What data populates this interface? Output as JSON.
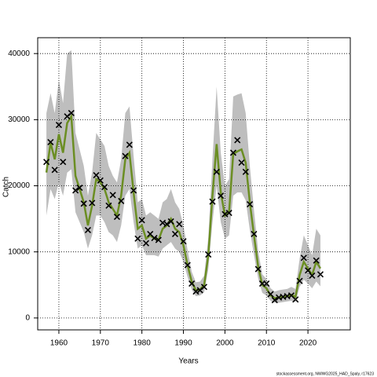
{
  "chart_data": {
    "type": "line",
    "xlabel": "Years",
    "ylabel": "Catch",
    "footer": "stockassessment.org, NWWG2025_HAD_Spaly, r17623",
    "x": [
      1957,
      1958,
      1959,
      1960,
      1961,
      1962,
      1963,
      1964,
      1965,
      1966,
      1967,
      1968,
      1969,
      1970,
      1971,
      1972,
      1973,
      1974,
      1975,
      1976,
      1977,
      1978,
      1979,
      1980,
      1981,
      1982,
      1983,
      1984,
      1985,
      1986,
      1987,
      1988,
      1989,
      1990,
      1991,
      1992,
      1993,
      1994,
      1995,
      1996,
      1997,
      1998,
      1999,
      2000,
      2001,
      2002,
      2003,
      2004,
      2005,
      2006,
      2007,
      2008,
      2009,
      2010,
      2011,
      2012,
      2013,
      2014,
      2015,
      2016,
      2017,
      2018,
      2019,
      2020,
      2021,
      2022,
      2023
    ],
    "estimate": [
      22000,
      26500,
      24000,
      27800,
      25000,
      29500,
      30500,
      21500,
      19500,
      17500,
      14000,
      17000,
      21000,
      20500,
      19500,
      17500,
      16500,
      15500,
      18500,
      24000,
      25000,
      19000,
      13500,
      14000,
      12000,
      12500,
      12000,
      11800,
      13500,
      14000,
      15000,
      13500,
      13000,
      11000,
      8000,
      5500,
      4200,
      4300,
      5000,
      9500,
      18500,
      26300,
      19000,
      15500,
      16000,
      24800,
      25200,
      25500,
      23500,
      17500,
      12500,
      7800,
      5000,
      4500,
      3400,
      3000,
      3100,
      3200,
      3300,
      3500,
      3200,
      6500,
      8500,
      7500,
      6500,
      8500,
      7500
    ],
    "upper": [
      31000,
      34000,
      31000,
      36000,
      32500,
      40000,
      40500,
      28000,
      25500,
      23000,
      18500,
      22000,
      28000,
      27000,
      26000,
      23000,
      21500,
      20500,
      24000,
      31000,
      32000,
      24500,
      17500,
      18000,
      15500,
      16000,
      15500,
      15000,
      17500,
      18000,
      19500,
      17500,
      16500,
      14000,
      10300,
      7000,
      5400,
      5500,
      6400,
      12200,
      24000,
      35000,
      25000,
      20000,
      21000,
      33500,
      33800,
      34000,
      31000,
      23000,
      16300,
      10200,
      6600,
      5900,
      4500,
      4000,
      4200,
      4300,
      4400,
      4700,
      4400,
      9000,
      12500,
      11000,
      9500,
      13500,
      12500
    ],
    "lower": [
      15500,
      19500,
      18000,
      20500,
      18500,
      22000,
      22500,
      16000,
      14500,
      13000,
      10500,
      12500,
      15500,
      15500,
      14500,
      13000,
      12500,
      11500,
      14000,
      18500,
      19500,
      14500,
      10500,
      11000,
      9500,
      9500,
      9500,
      9300,
      10500,
      11000,
      11500,
      10500,
      10000,
      8500,
      6200,
      4300,
      3300,
      3400,
      3900,
      7400,
      14500,
      20000,
      14500,
      12000,
      12500,
      18500,
      19000,
      19000,
      17800,
      13300,
      9500,
      6000,
      3800,
      3400,
      2600,
      2300,
      2300,
      2400,
      2500,
      2600,
      2400,
      4700,
      5800,
      5200,
      4500,
      5500,
      4800
    ],
    "observed": [
      23600,
      26600,
      22400,
      29200,
      23600,
      30500,
      31000,
      19300,
      19700,
      17300,
      13300,
      17400,
      21600,
      20800,
      19800,
      17000,
      18600,
      15300,
      17700,
      24500,
      26200,
      19300,
      12000,
      14800,
      11300,
      12700,
      12100,
      11800,
      14400,
      14200,
      14600,
      12700,
      14200,
      11600,
      8000,
      5200,
      4000,
      4200,
      4700,
      9600,
      17600,
      22100,
      18500,
      15700,
      15900,
      25000,
      26900,
      23500,
      22100,
      17200,
      12700,
      7400,
      5200,
      5200,
      3600,
      2700,
      3100,
      3200,
      3300,
      3400,
      2800,
      5600,
      9100,
      7200,
      6400,
      8700,
      6600
    ],
    "line_color": "#6b8e23",
    "band_color": "#bebebe",
    "marker_color": "#000000",
    "xlim": [
      1954.9,
      2030.2
    ],
    "ylim": [
      -1800,
      42400
    ],
    "xticks": [
      1960,
      1970,
      1980,
      1990,
      2000,
      2010,
      2020
    ],
    "yticks": [
      0,
      10000,
      20000,
      30000,
      40000
    ],
    "grid": true
  }
}
